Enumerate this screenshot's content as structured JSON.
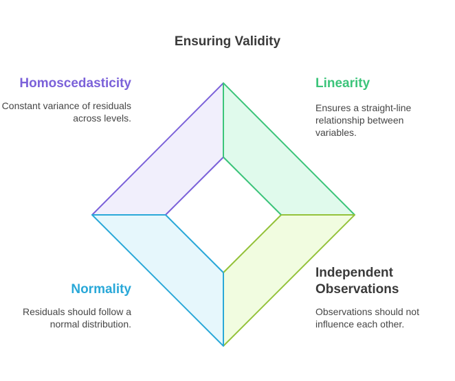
{
  "title": "Ensuring Validity",
  "quadrants": {
    "homoscedasticity": {
      "title": "Homoscedasticity",
      "description": "Constant variance of residuals across levels.",
      "color": "#7b61d9",
      "fill": "#f1effc"
    },
    "linearity": {
      "title": "Linearity",
      "description": "Ensures a straight-line relationship between variables.",
      "color": "#3cc47a",
      "fill": "#e0faec"
    },
    "normality": {
      "title": "Normality",
      "description": "Residuals should follow a normal distribution.",
      "color": "#29a8d8",
      "fill": "#e6f7fc"
    },
    "independent_observations": {
      "title": "Independent Observations",
      "description": "Observations should not influence each other.",
      "color": "#94c23a",
      "fill": "#f1fce0",
      "title_color": "#3a3a3a"
    }
  }
}
